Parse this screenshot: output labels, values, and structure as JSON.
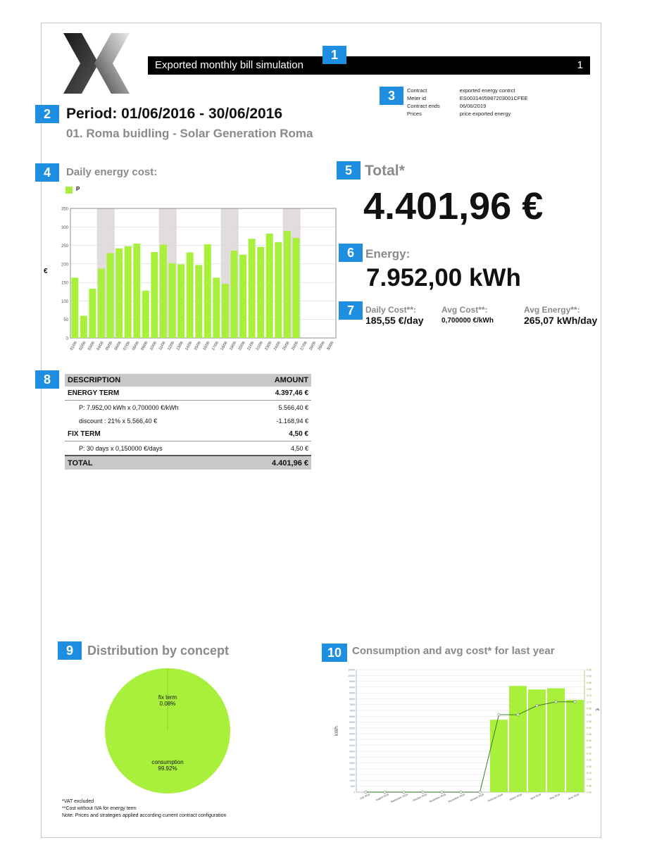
{
  "header": {
    "title": "Exported monthly bill simulation",
    "page_number": "1"
  },
  "markers": [
    "1",
    "2",
    "3",
    "4",
    "5",
    "6",
    "7",
    "8",
    "9",
    "10"
  ],
  "period": "Period: 01/06/2016 - 30/06/2016",
  "building": "01. Roma buidling - Solar Generation Roma",
  "contract_info": {
    "rows": [
      {
        "label": "Contract",
        "value": "exported energy contrct"
      },
      {
        "label": "Meter id",
        "value": "ES0031405987203001CFEE"
      },
      {
        "label": "Contract ends",
        "value": "06/06/2019"
      },
      {
        "label": "Prices",
        "value": "price exported energy"
      }
    ]
  },
  "daily_cost": {
    "title": "Daily energy cost:",
    "legend": "P",
    "ylabel": "€"
  },
  "total": {
    "label": "Total*",
    "value": "4.401,96 €"
  },
  "energy": {
    "label": "Energy:",
    "value": "7.952,00 kWh"
  },
  "stats": {
    "daily_cost_label": "Daily Cost**:",
    "daily_cost_value": "185,55 €/day",
    "avg_cost_label": "Avg Cost**:",
    "avg_cost_value": "0,700000 €/kWh",
    "avg_energy_label": "Avg Energy**:",
    "avg_energy_value": "265,07 kWh/day"
  },
  "bill_table": {
    "col_desc": "DESCRIPTION",
    "col_amount": "AMOUNT",
    "energy_term": "ENERGY TERM",
    "energy_term_amount": "4.397,46 €",
    "energy_line": "P: 7.952,00 kWh x 0,700000 €/kWh",
    "energy_line_amount": "5.566,40 €",
    "discount_line": "discount : 21% x 5.566,40 €",
    "discount_line_amount": "-1.168,94 €",
    "fix_term": "FIX TERM",
    "fix_term_amount": "4,50 €",
    "fix_line": "P: 30 days x 0,150000 €/days",
    "fix_line_amount": "4,50 €",
    "total": "TOTAL",
    "total_amount": "4.401,96 €"
  },
  "distribution": {
    "title": "Distribution by concept",
    "fix_label": "fix term",
    "fix_pct": "0.08%",
    "cons_label": "consumption",
    "cons_pct": "99.92%"
  },
  "yearly": {
    "title": "Consumption and avg cost* for last year",
    "ylabel_left": "kWh",
    "ylabel_right": "€"
  },
  "notes": {
    "line1": "*VAT excluded",
    "line2": "**Cost without IVA for energy term",
    "line3": "Note: Prices and strategies applied according current contract configuration"
  },
  "colors": {
    "accent": "#1e8fe0",
    "bar": "#a8f03c",
    "weekend": "#e2dcdc",
    "line": "#2a6e1f"
  },
  "chart_data": [
    {
      "type": "bar",
      "title": "Daily energy cost:",
      "ylabel": "€",
      "ylim": [
        0,
        350
      ],
      "yticks": [
        0,
        50,
        100,
        150,
        200,
        250,
        300,
        350
      ],
      "categories": [
        "01/06",
        "02/06",
        "03/06",
        "04/06",
        "05/06",
        "06/06",
        "07/06",
        "08/06",
        "09/06",
        "10/06",
        "11/06",
        "12/06",
        "13/06",
        "14/06",
        "15/06",
        "16/06",
        "17/06",
        "18/06",
        "19/06",
        "20/06",
        "21/06",
        "22/06",
        "23/06",
        "24/06",
        "25/06",
        "26/06",
        "27/06",
        "28/06",
        "29/06",
        "30/06"
      ],
      "series": [
        {
          "name": "P",
          "values": [
            163,
            60,
            133,
            187,
            229,
            242,
            248,
            255,
            128,
            232,
            252,
            202,
            199,
            231,
            197,
            253,
            163,
            146,
            236,
            225,
            268,
            246,
            282,
            259,
            289,
            270,
            null,
            null,
            null,
            null
          ]
        }
      ],
      "weekend_categories": [
        "04/06",
        "05/06",
        "11/06",
        "12/06",
        "18/06",
        "19/06",
        "25/06",
        "26/06"
      ],
      "grid": true,
      "legend": "top-left"
    },
    {
      "type": "pie",
      "title": "Distribution by concept",
      "slices": [
        {
          "label": "fix term",
          "value": 0.08
        },
        {
          "label": "consumption",
          "value": 99.92
        }
      ]
    },
    {
      "type": "bar",
      "title": "Consumption and avg cost* for last year",
      "ylabel": "kWh",
      "y2label": "€",
      "categories": [
        "July 2015",
        "August 2015",
        "September 2015",
        "October 2015",
        "November 2015",
        "December 2015",
        "January 2016",
        "February 2016",
        "March 2016",
        "April 2016",
        "May 2016",
        "June 2016"
      ],
      "series": [
        {
          "name": "consumption",
          "values": [
            0,
            0,
            0,
            0,
            0,
            0,
            0,
            6200,
            9100,
            8800,
            8900,
            7900
          ]
        },
        {
          "name": "avg cost",
          "type": "line",
          "values": [
            0,
            0,
            0,
            0,
            0,
            0,
            0,
            0.6,
            0.6,
            0.67,
            0.7,
            0.7
          ]
        }
      ],
      "ylim": [
        0,
        10500
      ],
      "y2lim": [
        0,
        0.95
      ],
      "grid": true
    }
  ]
}
